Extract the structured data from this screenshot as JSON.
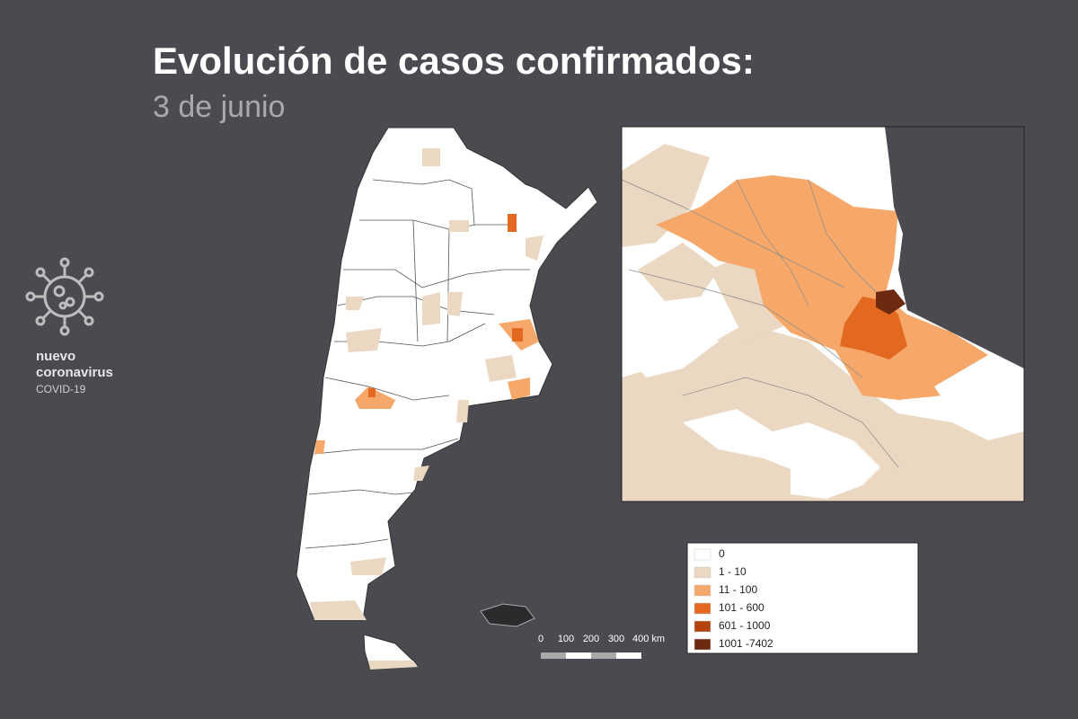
{
  "header": {
    "title": "Evolución de casos confirmados:",
    "subtitle": "3 de junio"
  },
  "logo": {
    "line1": "nuevo",
    "line2": "coronavirus",
    "line3": "COVID-19"
  },
  "legend": {
    "items": [
      {
        "label": "0",
        "color": "#ffffff"
      },
      {
        "label": "1 - 10",
        "color": "#ead8c3"
      },
      {
        "label": "11 - 100",
        "color": "#f5a86a"
      },
      {
        "label": "101 - 600",
        "color": "#e2691f"
      },
      {
        "label": "601 - 1000",
        "color": "#b3440e"
      },
      {
        "label": "1001 -7402",
        "color": "#6e2a10"
      }
    ]
  },
  "scale": {
    "labels": [
      "0",
      "100",
      "200",
      "300",
      "400 km"
    ]
  }
}
